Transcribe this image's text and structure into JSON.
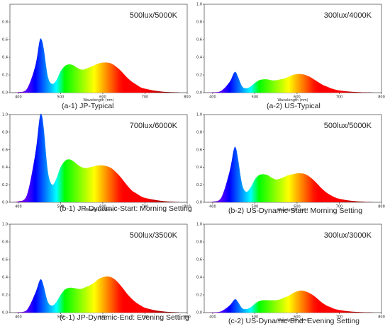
{
  "chart_data": [
    {
      "type": "area",
      "panel": "a-1",
      "caption": "(a-1) JP-Typical",
      "condition": "500lux/5000K",
      "xlabel": "Wavelength (nm)",
      "ylabel": "",
      "xlim": [
        380,
        800
      ],
      "ylim": [
        0,
        1.0
      ],
      "x_ticks": [
        "400",
        "500",
        "600",
        "700",
        "800"
      ],
      "y_ticks": [
        "0.0",
        "0.2",
        "0.4",
        "0.6",
        "0.8"
      ],
      "fill": "visible-spectrum gradient",
      "x": [
        380,
        400,
        420,
        440,
        450,
        455,
        460,
        470,
        480,
        490,
        500,
        510,
        520,
        530,
        540,
        550,
        560,
        570,
        580,
        590,
        600,
        610,
        620,
        630,
        640,
        650,
        660,
        670,
        680,
        690,
        700,
        720,
        740,
        760,
        780
      ],
      "y": [
        0,
        0.005,
        0.04,
        0.3,
        0.58,
        0.6,
        0.5,
        0.18,
        0.1,
        0.14,
        0.24,
        0.3,
        0.32,
        0.31,
        0.28,
        0.26,
        0.27,
        0.29,
        0.31,
        0.33,
        0.34,
        0.34,
        0.33,
        0.3,
        0.26,
        0.21,
        0.16,
        0.12,
        0.09,
        0.06,
        0.045,
        0.025,
        0.012,
        0.006,
        0.003
      ]
    },
    {
      "type": "area",
      "panel": "a-2",
      "caption": "(a-2) US-Typical",
      "condition": "300lux/4000K",
      "xlabel": "Wavelength (nm)",
      "ylabel": "",
      "xlim": [
        380,
        800
      ],
      "ylim": [
        0,
        1.0
      ],
      "x_ticks": [
        "400",
        "500",
        "600",
        "700",
        "800"
      ],
      "y_ticks": [
        "0.0",
        "0.2",
        "0.4",
        "0.6",
        "0.8",
        "1.0"
      ],
      "fill": "visible-spectrum gradient",
      "x": [
        380,
        400,
        420,
        440,
        450,
        455,
        460,
        470,
        480,
        490,
        500,
        510,
        520,
        530,
        540,
        550,
        560,
        570,
        580,
        590,
        600,
        610,
        620,
        630,
        640,
        650,
        660,
        670,
        680,
        690,
        700,
        720,
        740,
        760,
        780
      ],
      "y": [
        0,
        0.004,
        0.02,
        0.12,
        0.22,
        0.23,
        0.18,
        0.07,
        0.05,
        0.07,
        0.11,
        0.14,
        0.15,
        0.15,
        0.14,
        0.14,
        0.15,
        0.16,
        0.18,
        0.2,
        0.21,
        0.21,
        0.2,
        0.18,
        0.15,
        0.12,
        0.09,
        0.07,
        0.05,
        0.035,
        0.025,
        0.014,
        0.007,
        0.004,
        0.002
      ]
    },
    {
      "type": "area",
      "panel": "b-1",
      "caption": "(b-1) JP-Dynamic-Start: Morning Setting",
      "condition": "700lux/6000K",
      "xlabel": "Wavelength (nm)",
      "ylabel": "",
      "xlim": [
        380,
        800
      ],
      "ylim": [
        0,
        1.0
      ],
      "x_ticks": [
        "400",
        "500",
        "600",
        "700",
        "800"
      ],
      "y_ticks": [
        "0.0",
        "0.2",
        "0.4",
        "0.6",
        "0.8",
        "1.0"
      ],
      "fill": "visible-spectrum gradient",
      "x": [
        380,
        400,
        420,
        440,
        450,
        455,
        460,
        470,
        480,
        490,
        500,
        510,
        520,
        530,
        540,
        550,
        560,
        570,
        580,
        590,
        600,
        610,
        620,
        630,
        640,
        650,
        660,
        670,
        680,
        690,
        700,
        720,
        740,
        760,
        780
      ],
      "y": [
        0,
        0.01,
        0.08,
        0.55,
        0.95,
        1.0,
        0.85,
        0.35,
        0.2,
        0.27,
        0.4,
        0.47,
        0.49,
        0.47,
        0.43,
        0.4,
        0.39,
        0.4,
        0.41,
        0.42,
        0.42,
        0.41,
        0.39,
        0.35,
        0.3,
        0.24,
        0.18,
        0.13,
        0.1,
        0.07,
        0.05,
        0.03,
        0.015,
        0.007,
        0.003
      ]
    },
    {
      "type": "area",
      "panel": "b-2",
      "caption": "(b-2) US-Dynamic-Start: Morning Setting",
      "condition": "500lux/5000K",
      "xlabel": "Wavelength (nm)",
      "ylabel": "",
      "xlim": [
        380,
        800
      ],
      "ylim": [
        0,
        1.0
      ],
      "x_ticks": [
        "400",
        "500",
        "600",
        "700",
        "800"
      ],
      "y_ticks": [
        "0.0",
        "0.2",
        "0.4",
        "0.6",
        "0.8",
        "1.0"
      ],
      "fill": "visible-spectrum gradient",
      "x": [
        380,
        400,
        420,
        440,
        450,
        455,
        460,
        470,
        480,
        490,
        500,
        510,
        520,
        530,
        540,
        550,
        560,
        570,
        580,
        590,
        600,
        610,
        620,
        630,
        640,
        650,
        660,
        670,
        680,
        690,
        700,
        720,
        740,
        760,
        780
      ],
      "y": [
        0,
        0.006,
        0.05,
        0.35,
        0.6,
        0.62,
        0.5,
        0.2,
        0.12,
        0.17,
        0.26,
        0.31,
        0.32,
        0.31,
        0.28,
        0.26,
        0.27,
        0.29,
        0.31,
        0.32,
        0.33,
        0.33,
        0.32,
        0.29,
        0.25,
        0.2,
        0.15,
        0.11,
        0.08,
        0.055,
        0.04,
        0.022,
        0.011,
        0.005,
        0.002
      ]
    },
    {
      "type": "area",
      "panel": "c-1",
      "caption": "(c-1) JP-Dynamic-End: Evening Setting",
      "condition": "500lux/3500K",
      "xlabel": "",
      "ylabel": "",
      "xlim": [
        380,
        800
      ],
      "ylim": [
        0,
        1.0
      ],
      "x_ticks": [
        "400",
        "500",
        "600",
        "700",
        "800"
      ],
      "y_ticks": [
        "0.0",
        "0.2",
        "0.4",
        "0.6",
        "0.8",
        "1.0"
      ],
      "fill": "visible-spectrum gradient",
      "x": [
        380,
        400,
        420,
        440,
        450,
        455,
        460,
        470,
        480,
        490,
        500,
        510,
        520,
        530,
        540,
        550,
        560,
        570,
        580,
        590,
        600,
        610,
        620,
        630,
        640,
        650,
        660,
        670,
        680,
        690,
        700,
        720,
        740,
        760,
        780
      ],
      "y": [
        0,
        0.004,
        0.03,
        0.22,
        0.36,
        0.37,
        0.3,
        0.12,
        0.08,
        0.12,
        0.2,
        0.26,
        0.28,
        0.28,
        0.27,
        0.27,
        0.29,
        0.31,
        0.34,
        0.38,
        0.4,
        0.41,
        0.4,
        0.37,
        0.32,
        0.26,
        0.2,
        0.15,
        0.11,
        0.08,
        0.055,
        0.03,
        0.015,
        0.007,
        0.003
      ]
    },
    {
      "type": "area",
      "panel": "c-2",
      "caption": "(c-2) US-Dynamic-End: Evening Setting",
      "condition": "300lux/3000K",
      "xlabel": "Wavelength (nm)",
      "ylabel": "",
      "xlim": [
        380,
        800
      ],
      "ylim": [
        0,
        1.0
      ],
      "x_ticks": [
        "400",
        "500",
        "600",
        "700",
        "800"
      ],
      "y_ticks": [
        "0.0",
        "0.2",
        "0.4",
        "0.6",
        "0.8",
        "1.0"
      ],
      "fill": "visible-spectrum gradient",
      "x": [
        380,
        400,
        420,
        440,
        450,
        455,
        460,
        470,
        480,
        490,
        500,
        510,
        520,
        530,
        540,
        550,
        560,
        570,
        580,
        590,
        600,
        610,
        620,
        630,
        640,
        650,
        660,
        670,
        680,
        690,
        700,
        720,
        740,
        760,
        780
      ],
      "y": [
        0,
        0.003,
        0.015,
        0.08,
        0.14,
        0.15,
        0.12,
        0.05,
        0.04,
        0.06,
        0.1,
        0.13,
        0.14,
        0.14,
        0.14,
        0.14,
        0.15,
        0.17,
        0.19,
        0.22,
        0.24,
        0.25,
        0.24,
        0.22,
        0.19,
        0.15,
        0.11,
        0.08,
        0.06,
        0.04,
        0.03,
        0.016,
        0.008,
        0.004,
        0.002
      ]
    }
  ]
}
